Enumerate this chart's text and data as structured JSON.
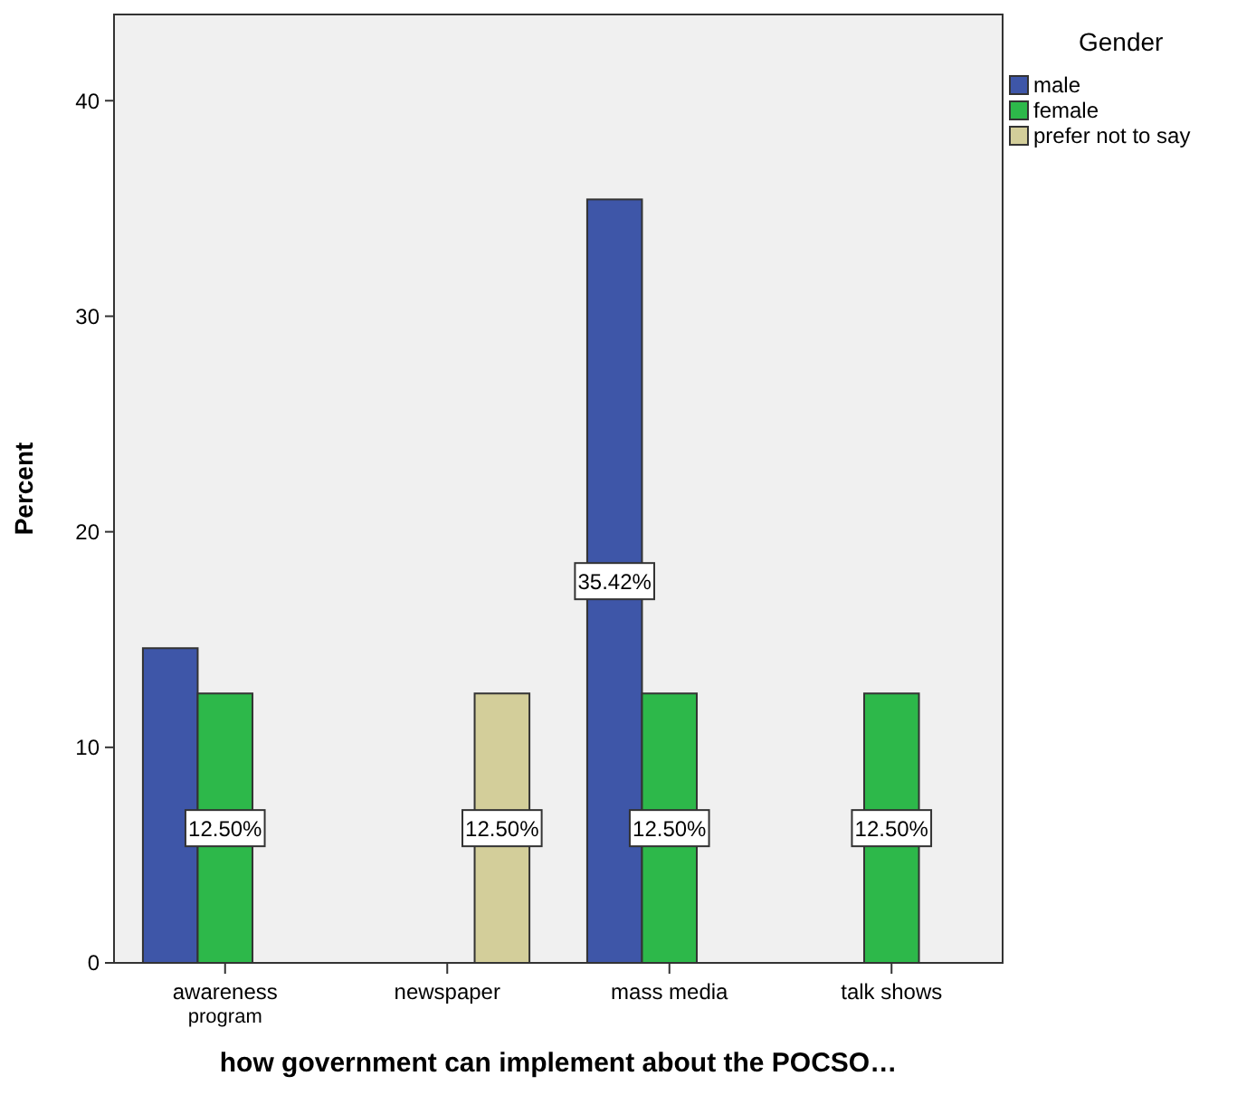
{
  "chart_data": {
    "type": "bar",
    "xlabel": "how government can implement about the POCSO…",
    "ylabel": "Percent",
    "legend_title": "Gender",
    "legend": "top right",
    "categories": [
      "awareness program",
      "newspaper",
      "mass media",
      "talk shows"
    ],
    "series": [
      {
        "name": "male",
        "color": "#3e56a8",
        "values": [
          14.6,
          null,
          35.42,
          null
        ],
        "value_labels": [
          null,
          null,
          "35.42%",
          null
        ]
      },
      {
        "name": "female",
        "color": "#2db84a",
        "values": [
          12.5,
          null,
          12.5,
          12.5
        ],
        "value_labels": [
          "12.50%",
          null,
          "12.50%",
          "12.50%"
        ]
      },
      {
        "name": "prefer not to say",
        "color": "#d3ce9a",
        "values": [
          null,
          12.5,
          null,
          null
        ],
        "value_labels": [
          null,
          "12.50%",
          null,
          null
        ]
      }
    ],
    "ylim": [
      0,
      44
    ],
    "yticks": [
      0,
      10,
      20,
      30,
      40
    ],
    "grid": false
  }
}
